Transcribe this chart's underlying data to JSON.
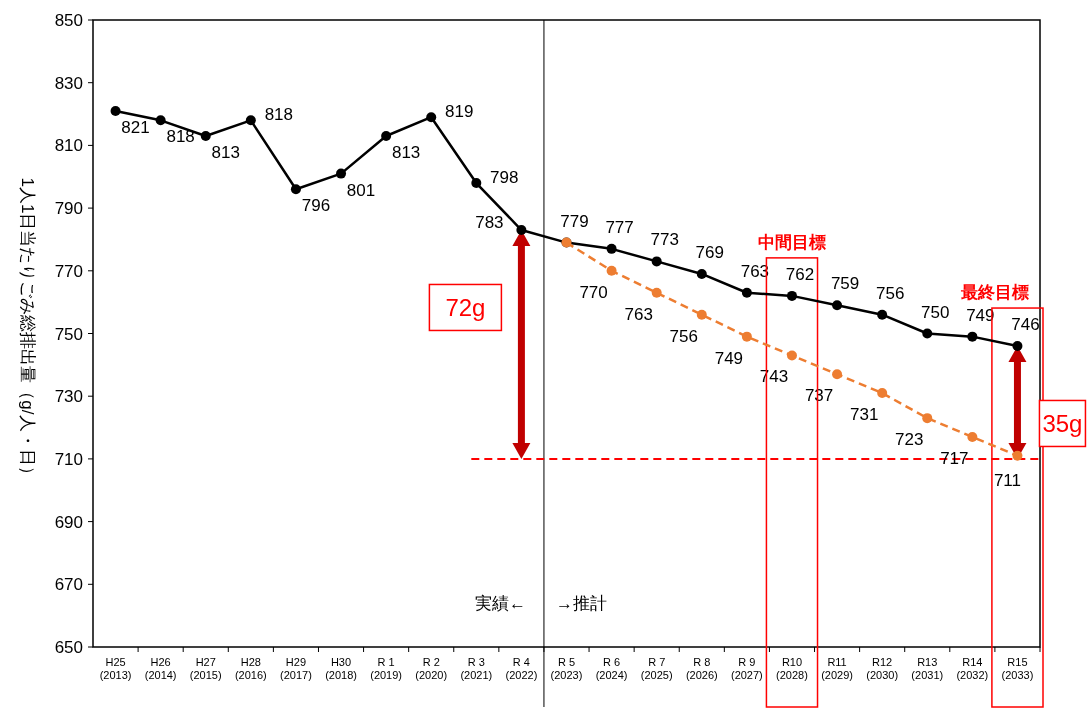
{
  "chart_data": {
    "type": "line",
    "ylabel": "1人1日当たりごみ総排出量（g/人・日）",
    "categories": [
      "H25\n(2013)",
      "H26\n(2014)",
      "H27\n(2015)",
      "H28\n(2016)",
      "H29\n(2017)",
      "H30\n(2018)",
      "R 1\n(2019)",
      "R 2\n(2020)",
      "R 3\n(2021)",
      "R 4\n(2022)",
      "R 5\n(2023)",
      "R 6\n(2024)",
      "R 7\n(2025)",
      "R 8\n(2026)",
      "R 9\n(2027)",
      "R10\n(2028)",
      "R11\n(2029)",
      "R12\n(2030)",
      "R13\n(2031)",
      "R14\n(2032)",
      "R15\n(2033)"
    ],
    "series": [
      {
        "color": "#000000",
        "marker": "circle",
        "line_style": "solid",
        "values": [
          821,
          818,
          813,
          818,
          796,
          801,
          813,
          819,
          798,
          783,
          779,
          777,
          773,
          769,
          763,
          762,
          759,
          756,
          750,
          749,
          746
        ]
      },
      {
        "color": "#ed7d31",
        "marker": "circle",
        "line_style": "dashed",
        "values": [
          null,
          null,
          null,
          null,
          null,
          null,
          null,
          null,
          null,
          null,
          779,
          770,
          763,
          756,
          749,
          743,
          737,
          731,
          723,
          717,
          711
        ],
        "value_labels": [
          null,
          null,
          null,
          null,
          null,
          null,
          null,
          null,
          null,
          null,
          null,
          "770",
          "763",
          "756",
          "749",
          "743",
          "737",
          "731",
          "723",
          "717",
          "711"
        ]
      }
    ],
    "ylim": [
      650,
      850
    ],
    "yticks": [
      650,
      670,
      690,
      710,
      730,
      750,
      770,
      790,
      810,
      830,
      850
    ],
    "data_labels": true,
    "grid": false,
    "ref_lines": [
      {
        "axis": "y",
        "value": 710,
        "color": "#ff0000",
        "line_style": "dashed"
      }
    ],
    "annotations": [
      {
        "text": "中間目標",
        "x": "R10\n(2028)",
        "y": 762
      },
      {
        "text": "最終目標",
        "x": "R15\n(2033)",
        "y": 746
      },
      "72g",
      "35g",
      "実績←",
      "→推計"
    ]
  }
}
